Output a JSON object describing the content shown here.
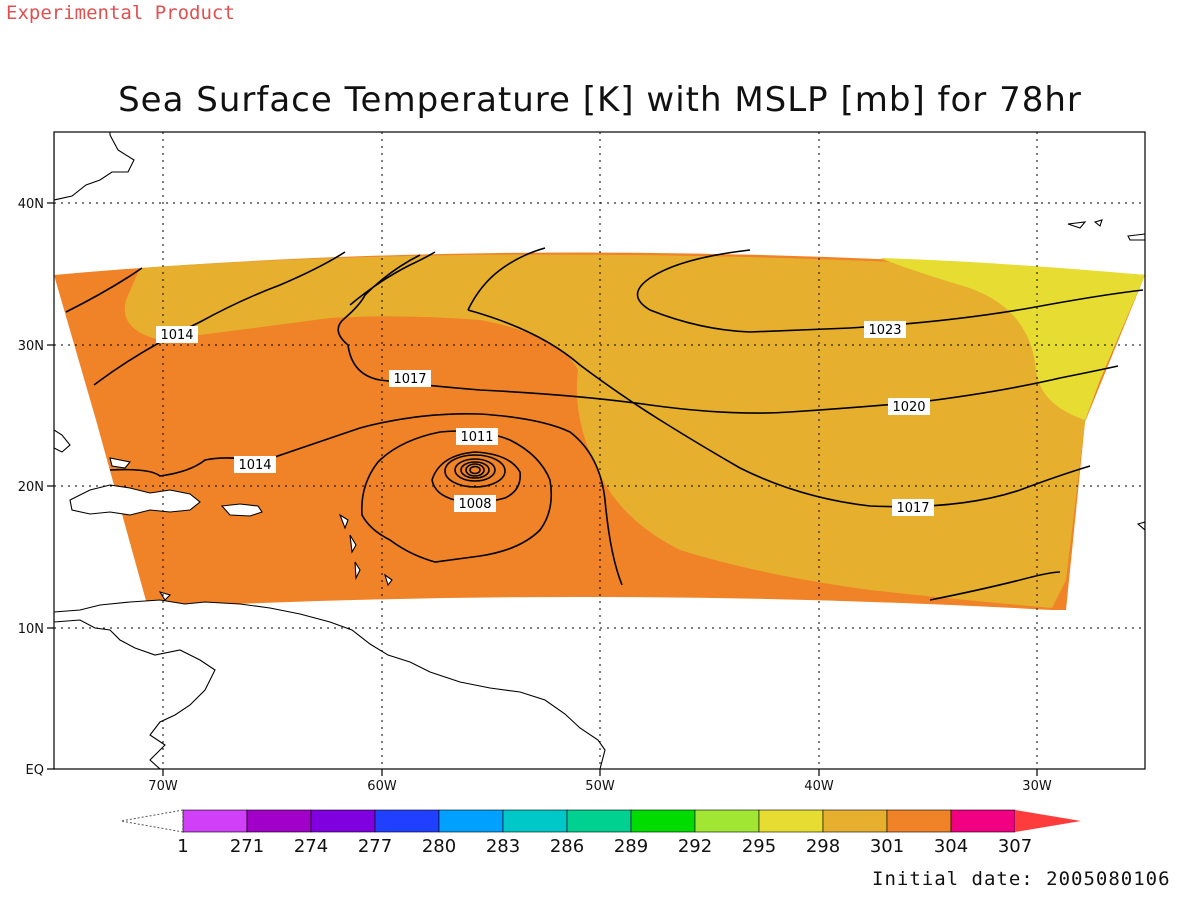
{
  "header": {
    "experimental_label": "Experimental Product",
    "title": "Sea Surface Temperature [K] with MSLP [mb] for 78hr"
  },
  "footer": {
    "initial_date": "Initial date: 2005080106"
  },
  "map": {
    "lon_ticks": [
      "70W",
      "60W",
      "50W",
      "40W",
      "30W"
    ],
    "lat_ticks": [
      "40N",
      "30N",
      "20N",
      "10N",
      "EQ"
    ],
    "grid": true,
    "grid_style": "dotted"
  },
  "isobars": {
    "labels": [
      "1014",
      "1023",
      "1017",
      "1020",
      "1014",
      "1011",
      "1017",
      "1008"
    ]
  },
  "colorbar": {
    "labels": [
      "1",
      "271",
      "274",
      "277",
      "280",
      "283",
      "286",
      "289",
      "292",
      "295",
      "298",
      "301",
      "304",
      "307"
    ],
    "colors": [
      "#d040f8",
      "#a000c8",
      "#8000e0",
      "#2040ff",
      "#00a0ff",
      "#00c8c8",
      "#00d090",
      "#00dc00",
      "#a0e632",
      "#e6dc32",
      "#e6af2d",
      "#f08228",
      "#f00080",
      "#ff3c3c"
    ]
  }
}
